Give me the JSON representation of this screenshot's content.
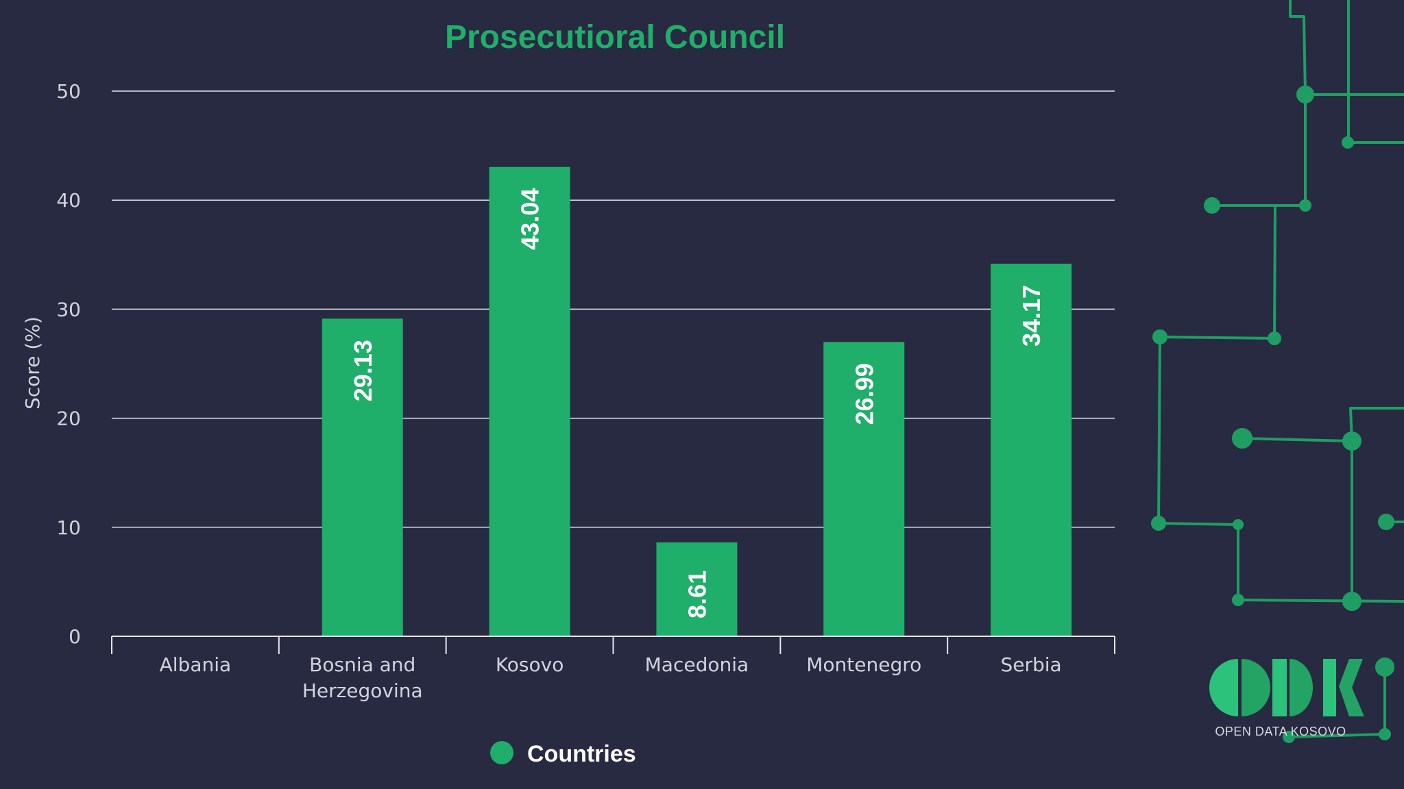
{
  "colors": {
    "background": "#272a41",
    "bar": "#20ae6b",
    "title": "#21ae6a",
    "gridline": "#e6e6ee",
    "axis_text": "#d2d4dc",
    "data_label": "#ffffff",
    "legend_text": "#ffffff",
    "circuit": "#1f9e63"
  },
  "chart_data": {
    "type": "bar",
    "title": "Prosecutioral Council",
    "xlabel": "",
    "ylabel": "Score (%)",
    "ylim": [
      0,
      50
    ],
    "yticks": [
      0,
      10,
      20,
      30,
      40,
      50
    ],
    "categories": [
      [
        "Albania"
      ],
      [
        "Bosnia and",
        "Herzegovina"
      ],
      [
        "Kosovo"
      ],
      [
        "Macedonia"
      ],
      [
        "Montenegro"
      ],
      [
        "Serbia"
      ]
    ],
    "series": [
      {
        "name": "Countries",
        "values": [
          null,
          29.13,
          43.04,
          8.61,
          26.99,
          34.17
        ],
        "labels": [
          "",
          "29.13",
          "43.04",
          "8.61",
          "26.99",
          "34.17"
        ]
      }
    ],
    "grid": true,
    "legend_position": "bottom"
  },
  "logo": {
    "text": "OPEN DATA KOSOVO",
    "icon": "odk-logo-icon"
  }
}
